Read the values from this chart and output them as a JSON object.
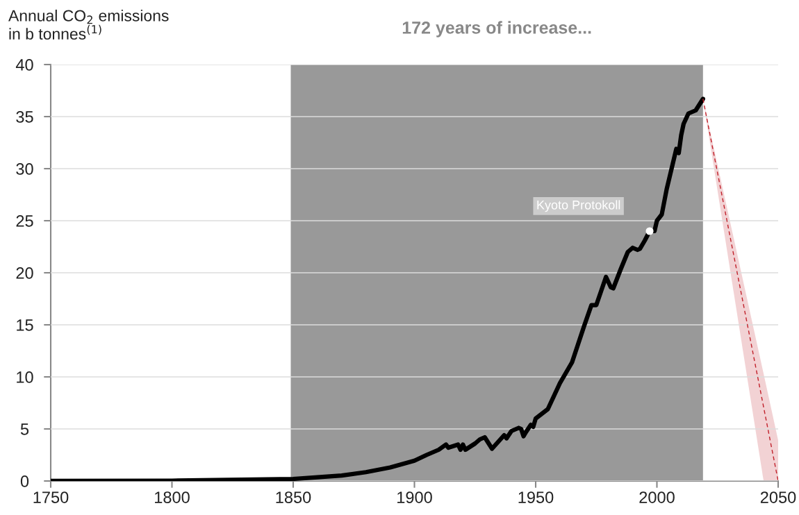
{
  "chart_data": {
    "type": "line",
    "ylabel": "Annual CO$_{2}$ emissions\nin b tonnes$^{(1)}$",
    "xlim": [
      1750,
      2050
    ],
    "xticks": [
      1750,
      1800,
      1850,
      1900,
      1950,
      2000,
      2050
    ],
    "ylim": [
      0,
      40
    ],
    "yticks": [
      0,
      5,
      10,
      15,
      20,
      25,
      30,
      35,
      40
    ],
    "grid": "y",
    "marker": "none",
    "bands": [
      {
        "axis": "x",
        "from": 1849,
        "to": 2019,
        "label": "172 years of increase...",
        "color": "#999999"
      }
    ],
    "annotations": [
      {
        "text": "Kyoto Protokoll",
        "x": 1997,
        "y": 24.0
      }
    ],
    "series": [
      {
        "color": "#000000",
        "line_style": "solid",
        "x": [
          1750,
          1800,
          1850,
          1860,
          1870,
          1880,
          1890,
          1900,
          1905,
          1910,
          1913,
          1914,
          1918,
          1919,
          1920,
          1921,
          1925,
          1927,
          1929,
          1932,
          1937,
          1938,
          1940,
          1943,
          1944,
          1945,
          1946,
          1948,
          1949,
          1950,
          1955,
          1960,
          1965,
          1970,
          1973,
          1975,
          1979,
          1981,
          1982,
          1985,
          1988,
          1990,
          1992,
          1993,
          1995,
          1997,
          1999,
          2000,
          2002,
          2004,
          2008,
          2009,
          2010,
          2011,
          2013,
          2015,
          2016,
          2019
        ],
        "values": [
          0.01,
          0.03,
          0.2,
          0.36,
          0.53,
          0.85,
          1.3,
          1.95,
          2.5,
          3.0,
          3.5,
          3.2,
          3.5,
          3.0,
          3.5,
          3.0,
          3.6,
          4.0,
          4.2,
          3.1,
          4.4,
          4.1,
          4.8,
          5.1,
          5.0,
          4.3,
          4.7,
          5.4,
          5.2,
          6.0,
          6.9,
          9.4,
          11.4,
          14.9,
          16.9,
          16.9,
          19.6,
          18.6,
          18.5,
          20.3,
          22.0,
          22.4,
          22.2,
          22.3,
          23.1,
          24.0,
          24.0,
          25.0,
          25.6,
          28.0,
          31.9,
          31.5,
          33.2,
          34.3,
          35.3,
          35.5,
          35.6,
          36.7
        ]
      },
      {
        "color": "#c0202a",
        "line_style": "dashed",
        "x": [
          2019,
          2044,
          2050
        ],
        "values": [
          36.7,
          7.1,
          0
        ],
        "lower": [
          36.7,
          0,
          0
        ],
        "upper": [
          36.7,
          10.3,
          3.9
        ]
      }
    ]
  }
}
